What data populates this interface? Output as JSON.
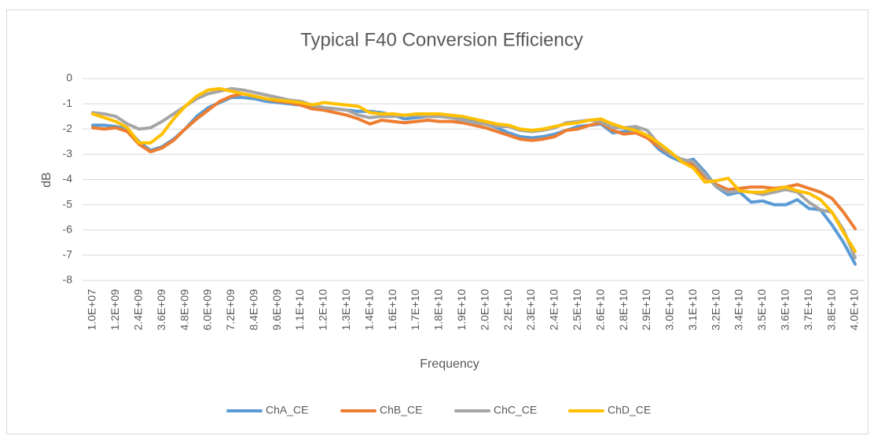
{
  "chart_data": {
    "type": "line",
    "title": "Typical F40 Conversion Efficiency",
    "x_label": "Frequency",
    "y_label": "dB",
    "categories": [
      "1.0E+07",
      null,
      "1.2E+09",
      null,
      "2.4E+09",
      null,
      "3.6E+09",
      null,
      "4.8E+09",
      null,
      "6.0E+09",
      null,
      "7.2E+09",
      null,
      "8.4E+09",
      null,
      "9.6E+09",
      null,
      "1.1E+10",
      null,
      "1.2E+10",
      null,
      "1.3E+10",
      null,
      "1.4E+10",
      null,
      "1.6E+10",
      null,
      "1.7E+10",
      null,
      "1.8E+10",
      null,
      "1.9E+10",
      null,
      "2.0E+10",
      null,
      "2.2E+10",
      null,
      "2.3E+10",
      null,
      "2.4E+10",
      null,
      "2.5E+10",
      null,
      "2.6E+10",
      null,
      "2.8E+10",
      null,
      "2.9E+10",
      null,
      "3.0E+10",
      null,
      "3.1E+10",
      null,
      "3.2E+10",
      null,
      "3.4E+10",
      null,
      "3.5E+10",
      null,
      "3.6E+10",
      null,
      "3.7E+10",
      null,
      "3.8E+10",
      null,
      "4.0E+10"
    ],
    "series": [
      {
        "name": "ChA_CE",
        "color": "#5b9bd5",
        "values": [
          -1.85,
          -1.85,
          -1.9,
          -2.0,
          -2.5,
          -2.85,
          -2.7,
          -2.4,
          -2.0,
          -1.5,
          -1.15,
          -0.95,
          -0.75,
          -0.75,
          -0.8,
          -0.9,
          -0.95,
          -1.0,
          -1.05,
          -1.1,
          -1.15,
          -1.2,
          -1.25,
          -1.3,
          -1.3,
          -1.35,
          -1.45,
          -1.6,
          -1.55,
          -1.5,
          -1.5,
          -1.55,
          -1.6,
          -1.7,
          -1.8,
          -1.95,
          -2.15,
          -2.3,
          -2.35,
          -2.3,
          -2.2,
          -2.05,
          -1.9,
          -1.85,
          -1.8,
          -2.15,
          -2.1,
          -2.0,
          -2.3,
          -2.8,
          -3.1,
          -3.3,
          -3.2,
          -3.7,
          -4.3,
          -4.6,
          -4.5,
          -4.9,
          -4.85,
          -5.0,
          -5.0,
          -4.8,
          -5.15,
          -5.2,
          -5.8,
          -6.5,
          -7.35
        ]
      },
      {
        "name": "ChB_CE",
        "color": "#ed7d31",
        "values": [
          -1.95,
          -2.0,
          -1.95,
          -2.1,
          -2.6,
          -2.9,
          -2.75,
          -2.45,
          -2.0,
          -1.6,
          -1.25,
          -0.9,
          -0.7,
          -0.6,
          -0.7,
          -0.8,
          -0.9,
          -0.95,
          -1.05,
          -1.2,
          -1.25,
          -1.35,
          -1.45,
          -1.6,
          -1.8,
          -1.65,
          -1.7,
          -1.75,
          -1.7,
          -1.65,
          -1.7,
          -1.7,
          -1.75,
          -1.85,
          -1.95,
          -2.1,
          -2.25,
          -2.4,
          -2.45,
          -2.4,
          -2.3,
          -2.05,
          -2.0,
          -1.85,
          -1.75,
          -2.05,
          -2.2,
          -2.15,
          -2.35,
          -2.7,
          -3.0,
          -3.2,
          -3.45,
          -3.9,
          -4.2,
          -4.4,
          -4.35,
          -4.3,
          -4.3,
          -4.35,
          -4.3,
          -4.2,
          -4.35,
          -4.5,
          -4.75,
          -5.3,
          -5.95
        ]
      },
      {
        "name": "ChC_CE",
        "color": "#a5a5a5",
        "values": [
          -1.35,
          -1.4,
          -1.5,
          -1.8,
          -2.0,
          -1.95,
          -1.7,
          -1.4,
          -1.1,
          -0.8,
          -0.6,
          -0.5,
          -0.4,
          -0.45,
          -0.55,
          -0.65,
          -0.75,
          -0.85,
          -0.9,
          -1.05,
          -1.15,
          -1.2,
          -1.25,
          -1.45,
          -1.55,
          -1.5,
          -1.5,
          -1.45,
          -1.45,
          -1.5,
          -1.5,
          -1.55,
          -1.65,
          -1.75,
          -1.8,
          -1.9,
          -1.9,
          -2.05,
          -2.1,
          -2.05,
          -1.95,
          -1.75,
          -1.7,
          -1.65,
          -1.7,
          -1.95,
          -1.95,
          -1.9,
          -2.05,
          -2.6,
          -3.0,
          -3.2,
          -3.3,
          -3.8,
          -4.3,
          -4.5,
          -4.45,
          -4.5,
          -4.6,
          -4.5,
          -4.4,
          -4.5,
          -4.9,
          -5.2,
          -5.3,
          -6.0,
          -7.1
        ]
      },
      {
        "name": "ChD_CE",
        "color": "#ffc000",
        "values": [
          -1.4,
          -1.55,
          -1.7,
          -1.95,
          -2.55,
          -2.55,
          -2.2,
          -1.6,
          -1.1,
          -0.7,
          -0.45,
          -0.4,
          -0.5,
          -0.6,
          -0.7,
          -0.8,
          -0.85,
          -0.9,
          -0.95,
          -1.05,
          -0.95,
          -1.0,
          -1.05,
          -1.1,
          -1.35,
          -1.4,
          -1.4,
          -1.45,
          -1.4,
          -1.4,
          -1.4,
          -1.45,
          -1.5,
          -1.6,
          -1.7,
          -1.8,
          -1.85,
          -2.0,
          -2.05,
          -2.0,
          -1.9,
          -1.8,
          -1.75,
          -1.65,
          -1.6,
          -1.8,
          -1.95,
          -2.05,
          -2.25,
          -2.55,
          -2.9,
          -3.3,
          -3.55,
          -4.1,
          -4.05,
          -3.95,
          -4.45,
          -4.5,
          -4.5,
          -4.4,
          -4.3,
          -4.45,
          -4.55,
          -4.8,
          -5.3,
          -6.1,
          -6.85
        ]
      }
    ],
    "ylim": [
      -8,
      0
    ],
    "yticks": [
      0,
      -1,
      -2,
      -3,
      -4,
      -5,
      -6,
      -7,
      -8
    ],
    "grid": true,
    "legend": "bottom"
  }
}
